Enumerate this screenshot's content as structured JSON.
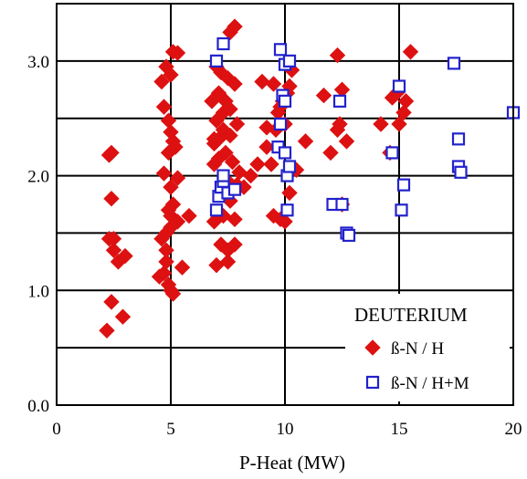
{
  "chart_data": {
    "type": "scatter",
    "title": "",
    "xlabel": "P-Heat (MW)",
    "ylabel": "",
    "xlim": [
      0,
      20
    ],
    "ylim": [
      0,
      3.5
    ],
    "x_ticks": [
      0,
      5,
      10,
      15,
      20
    ],
    "y_ticks": [
      0.0,
      1.0,
      2.0,
      3.0
    ],
    "x_tick_labels": [
      "0",
      "5",
      "10",
      "15",
      "20"
    ],
    "y_tick_labels": [
      "0.0",
      "1.0",
      "2.0",
      "3.0"
    ],
    "grid": true,
    "legend_title": "DEUTERIUM",
    "legend_position": "bottom-right",
    "series": [
      {
        "name": "ß-N / H",
        "marker": "diamond",
        "color": "#dd1111",
        "points": [
          [
            2.2,
            0.65
          ],
          [
            2.4,
            0.9
          ],
          [
            2.9,
            0.77
          ],
          [
            2.7,
            1.25
          ],
          [
            2.5,
            1.35
          ],
          [
            3.0,
            1.3
          ],
          [
            2.3,
            1.45
          ],
          [
            2.5,
            1.45
          ],
          [
            2.4,
            1.8
          ],
          [
            2.3,
            2.18
          ],
          [
            2.4,
            2.2
          ],
          [
            4.5,
            1.12
          ],
          [
            4.7,
            1.15
          ],
          [
            4.9,
            1.05
          ],
          [
            5.0,
            1.0
          ],
          [
            5.1,
            0.97
          ],
          [
            4.8,
            1.25
          ],
          [
            5.5,
            1.2
          ],
          [
            4.6,
            1.45
          ],
          [
            4.8,
            1.5
          ],
          [
            5.0,
            1.55
          ],
          [
            5.3,
            1.6
          ],
          [
            5.8,
            1.65
          ],
          [
            4.9,
            1.7
          ],
          [
            5.1,
            1.75
          ],
          [
            5.0,
            1.9
          ],
          [
            5.3,
            1.98
          ],
          [
            4.7,
            2.02
          ],
          [
            4.9,
            2.2
          ],
          [
            5.1,
            2.3
          ],
          [
            5.0,
            2.38
          ],
          [
            5.2,
            2.25
          ],
          [
            4.9,
            2.48
          ],
          [
            4.7,
            2.6
          ],
          [
            4.6,
            2.82
          ],
          [
            4.8,
            2.95
          ],
          [
            5.0,
            2.88
          ],
          [
            5.1,
            3.08
          ],
          [
            5.3,
            3.07
          ],
          [
            5.0,
            1.65
          ],
          [
            4.8,
            1.35
          ],
          [
            7.0,
            1.22
          ],
          [
            7.5,
            1.25
          ],
          [
            7.2,
            1.4
          ],
          [
            7.5,
            1.35
          ],
          [
            7.8,
            1.4
          ],
          [
            6.9,
            1.6
          ],
          [
            7.3,
            1.65
          ],
          [
            7.8,
            1.62
          ],
          [
            7.6,
            1.78
          ],
          [
            7.2,
            1.85
          ],
          [
            7.5,
            1.95
          ],
          [
            7.9,
            1.92
          ],
          [
            8.2,
            1.9
          ],
          [
            6.9,
            2.1
          ],
          [
            7.1,
            2.15
          ],
          [
            7.4,
            2.2
          ],
          [
            7.7,
            2.12
          ],
          [
            8.0,
            2.03
          ],
          [
            6.9,
            2.28
          ],
          [
            7.1,
            2.32
          ],
          [
            7.3,
            2.4
          ],
          [
            7.6,
            2.35
          ],
          [
            7.0,
            2.48
          ],
          [
            7.3,
            2.55
          ],
          [
            7.6,
            2.58
          ],
          [
            7.9,
            2.45
          ],
          [
            6.8,
            2.65
          ],
          [
            7.1,
            2.72
          ],
          [
            7.4,
            2.65
          ],
          [
            7.5,
            2.85
          ],
          [
            7.8,
            2.8
          ],
          [
            7.2,
            2.9
          ],
          [
            7.0,
            2.95
          ],
          [
            7.6,
            3.25
          ],
          [
            7.8,
            3.3
          ],
          [
            6.9,
            2.32
          ],
          [
            8.5,
            2.0
          ],
          [
            8.8,
            2.1
          ],
          [
            9.0,
            2.82
          ],
          [
            9.2,
            2.42
          ],
          [
            9.2,
            2.25
          ],
          [
            9.4,
            2.1
          ],
          [
            9.5,
            1.65
          ],
          [
            9.8,
            1.62
          ],
          [
            10.0,
            1.6
          ],
          [
            9.6,
            2.4
          ],
          [
            9.7,
            2.55
          ],
          [
            9.8,
            2.6
          ],
          [
            9.9,
            2.65
          ],
          [
            10.1,
            2.72
          ],
          [
            10.2,
            2.78
          ],
          [
            10.3,
            2.92
          ],
          [
            9.5,
            2.8
          ],
          [
            10.0,
            2.45
          ],
          [
            10.2,
            1.85
          ],
          [
            10.5,
            2.05
          ],
          [
            10.9,
            2.3
          ],
          [
            11.7,
            2.7
          ],
          [
            12.0,
            2.2
          ],
          [
            12.3,
            2.4
          ],
          [
            12.4,
            2.45
          ],
          [
            12.5,
            2.75
          ],
          [
            12.7,
            2.3
          ],
          [
            12.3,
            3.05
          ],
          [
            12.5,
            1.75
          ],
          [
            14.2,
            2.45
          ],
          [
            14.6,
            2.2
          ],
          [
            14.7,
            2.68
          ],
          [
            14.9,
            2.72
          ],
          [
            15.0,
            2.45
          ],
          [
            15.2,
            2.55
          ],
          [
            15.3,
            2.65
          ],
          [
            15.5,
            3.08
          ]
        ]
      },
      {
        "name": "ß-N / H+M",
        "marker": "square-open",
        "color": "#2222cc",
        "points": [
          [
            7.0,
            1.7
          ],
          [
            7.1,
            1.82
          ],
          [
            7.2,
            1.9
          ],
          [
            7.3,
            1.95
          ],
          [
            7.3,
            2.0
          ],
          [
            7.5,
            1.85
          ],
          [
            7.8,
            1.88
          ],
          [
            7.0,
            3.0
          ],
          [
            7.3,
            3.15
          ],
          [
            9.7,
            2.25
          ],
          [
            9.8,
            2.45
          ],
          [
            9.9,
            2.7
          ],
          [
            10.0,
            2.65
          ],
          [
            10.0,
            2.2
          ],
          [
            10.1,
            2.0
          ],
          [
            10.2,
            2.08
          ],
          [
            10.1,
            1.7
          ],
          [
            9.8,
            3.1
          ],
          [
            10.0,
            2.97
          ],
          [
            10.2,
            3.0
          ],
          [
            12.1,
            1.75
          ],
          [
            12.5,
            1.75
          ],
          [
            12.7,
            1.5
          ],
          [
            12.8,
            1.48
          ],
          [
            12.4,
            2.65
          ],
          [
            14.7,
            2.2
          ],
          [
            15.0,
            2.78
          ],
          [
            15.1,
            1.7
          ],
          [
            15.2,
            1.92
          ],
          [
            17.4,
            2.98
          ],
          [
            17.6,
            2.32
          ],
          [
            17.6,
            2.08
          ],
          [
            17.7,
            2.03
          ],
          [
            20.0,
            2.55
          ]
        ]
      }
    ]
  }
}
